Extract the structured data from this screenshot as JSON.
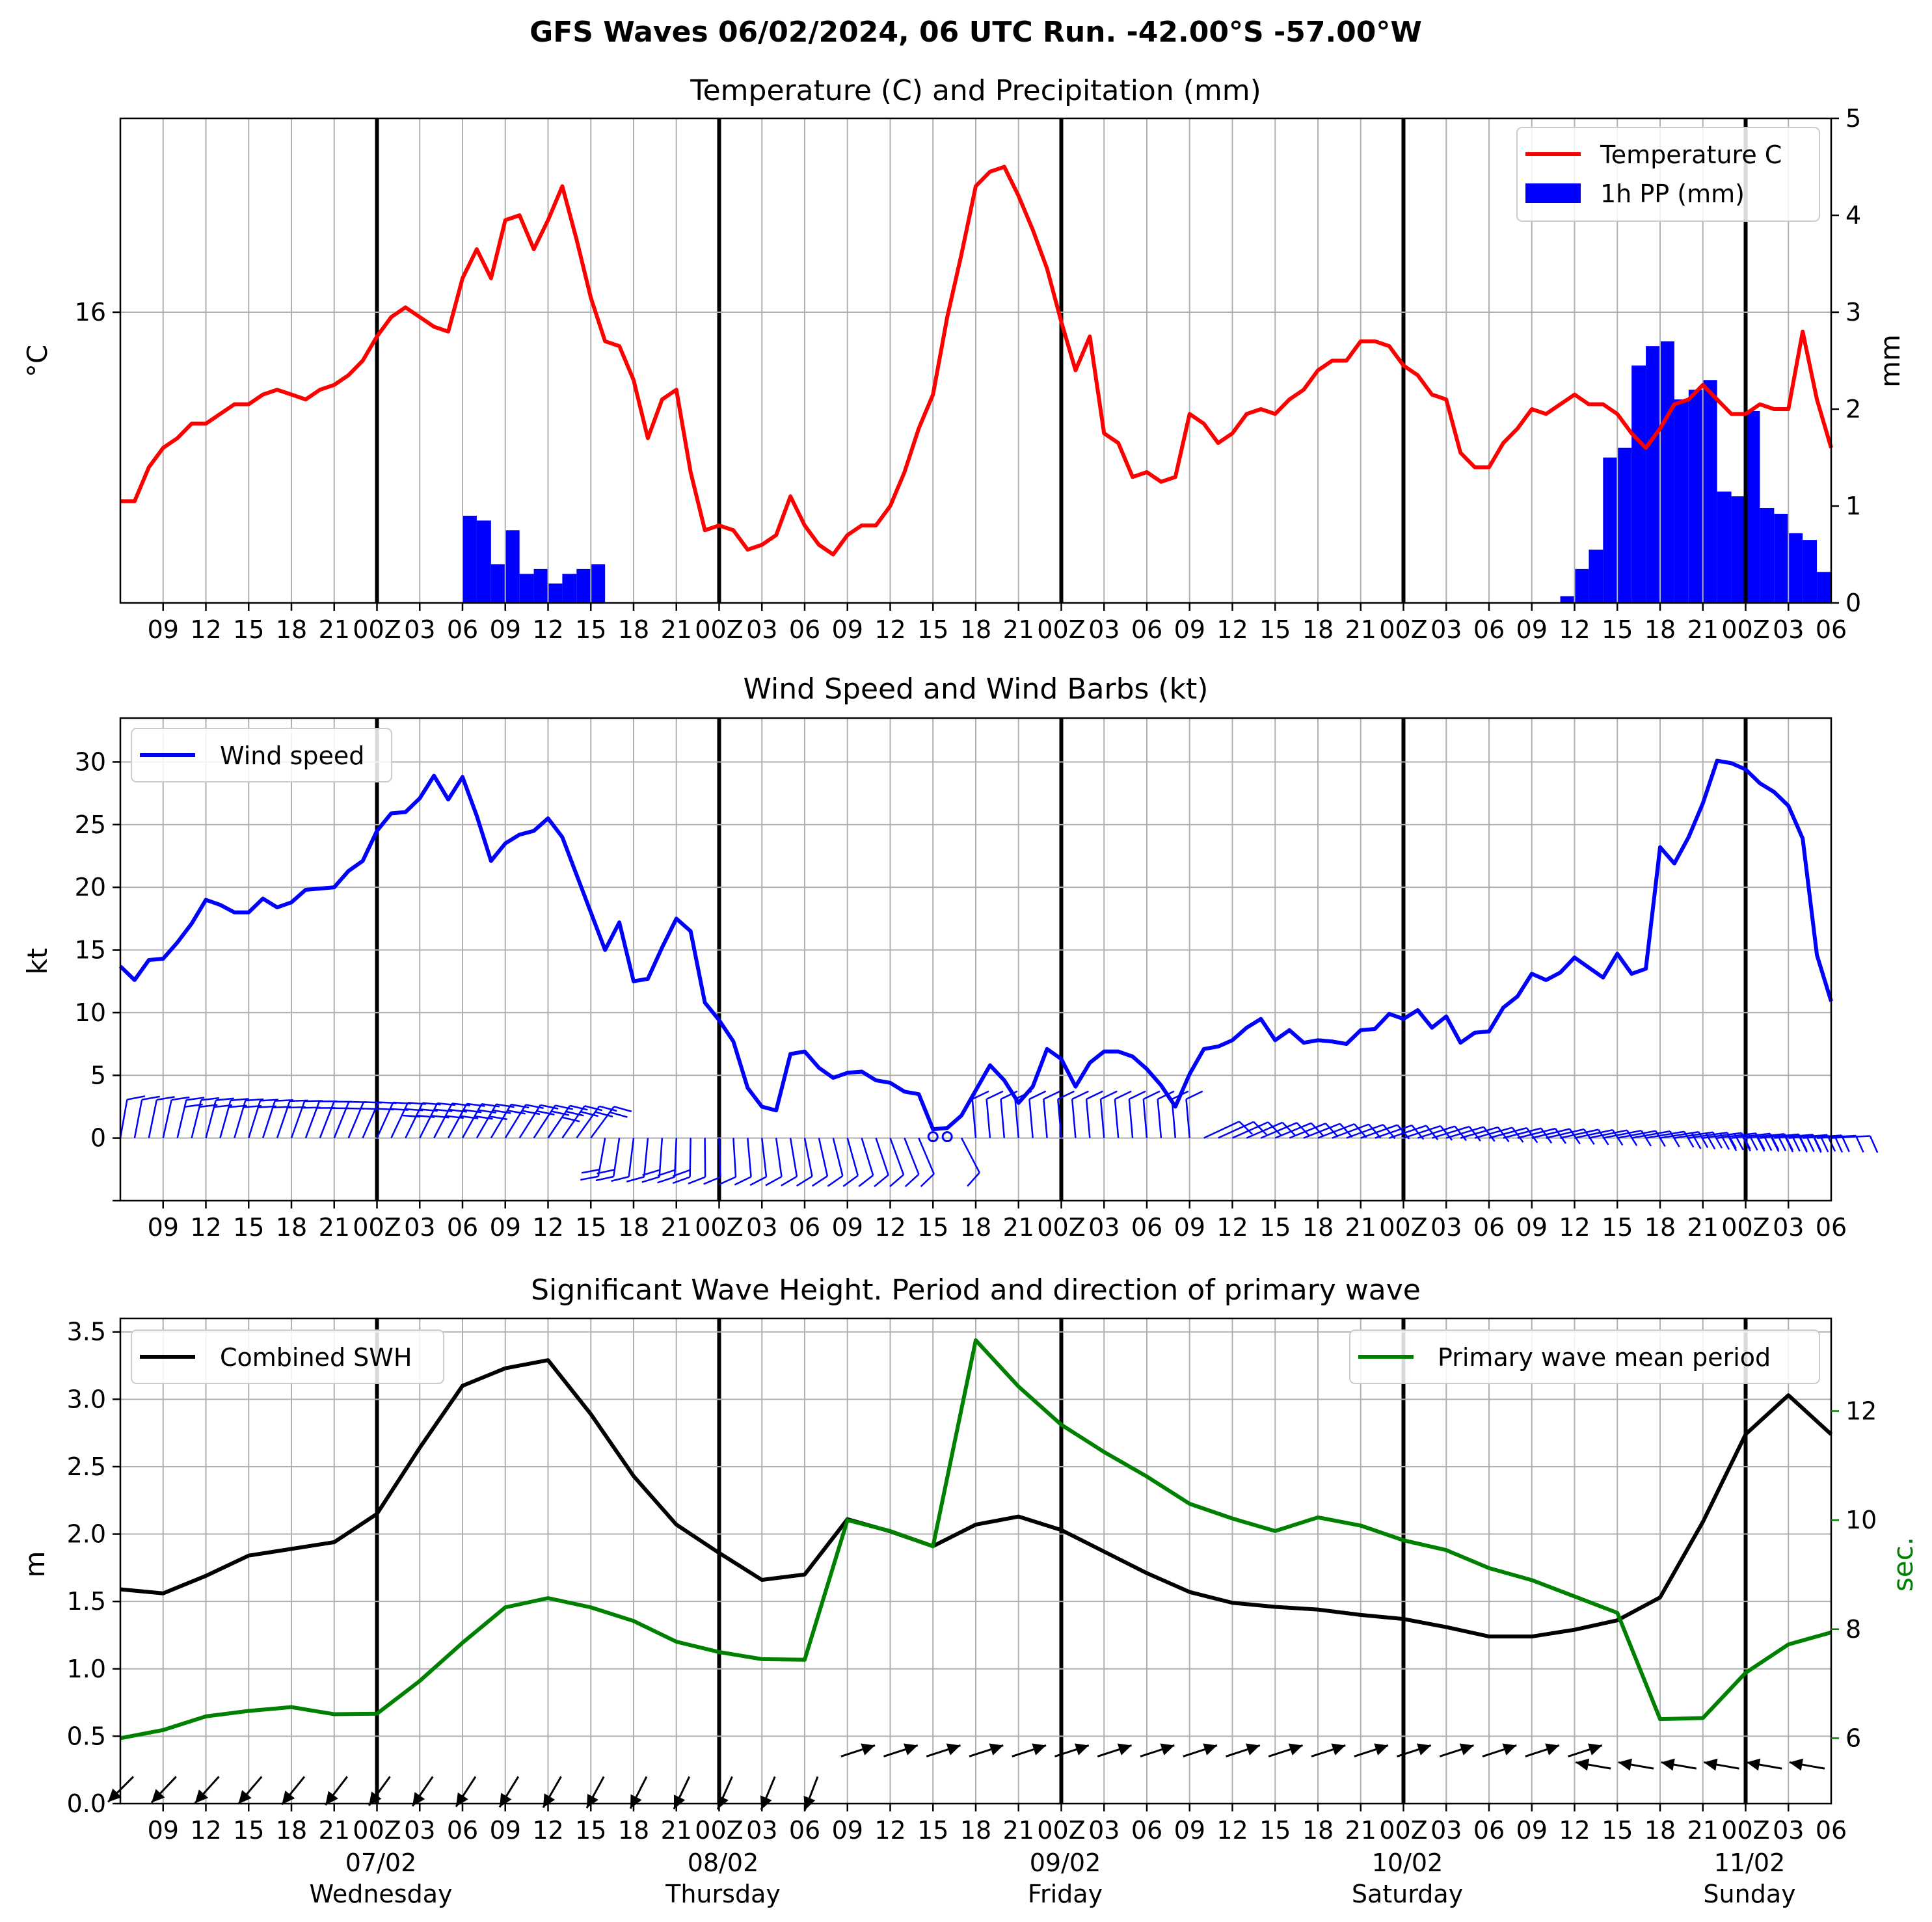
{
  "suptitle": "GFS Waves 06/02/2024, 06 UTC Run. -42.00°S -57.00°W",
  "x_tick_labels": [
    "09",
    "12",
    "15",
    "18",
    "21",
    "00Z",
    "03",
    "06",
    "09",
    "12",
    "15",
    "18",
    "21",
    "00Z",
    "03",
    "06",
    "09",
    "12",
    "15",
    "18",
    "21",
    "00Z",
    "03",
    "06",
    "09",
    "12",
    "15",
    "18",
    "21",
    "00Z",
    "03",
    "06",
    "09",
    "12",
    "15",
    "18",
    "21",
    "00Z",
    "03",
    "06"
  ],
  "day_labels": [
    {
      "date": "07/02",
      "weekday": "Wednesday"
    },
    {
      "date": "08/02",
      "weekday": "Thursday"
    },
    {
      "date": "09/02",
      "weekday": "Friday"
    },
    {
      "date": "10/02",
      "weekday": "Saturday"
    },
    {
      "date": "11/02",
      "weekday": "Sunday"
    }
  ],
  "colors": {
    "temperature": "#ff0000",
    "precip": "#0000ff",
    "wind": "#0000ff",
    "swh": "#000000",
    "period": "#008000",
    "grid": "#b0b0b0"
  },
  "chart_data": [
    {
      "type": "line",
      "title": "Temperature (C) and Precipitation (mm)",
      "x_unit": "hours since 06/02/2024 06 UTC",
      "x_range": [
        0,
        120
      ],
      "ylabel": "°C",
      "y_ticks": [
        "16"
      ],
      "ylabel_right": "mm",
      "ylim_right": [
        0,
        5
      ],
      "y_ticks_right": [
        "0",
        "1",
        "2",
        "3",
        "4",
        "5"
      ],
      "legend": {
        "placement": "top-right",
        "entries": [
          "Temperature C",
          "1h PP (mm)"
        ]
      },
      "grid": true,
      "series": [
        {
          "name": "Temperature C",
          "axis": "left_mm_scale",
          "x": [
            0,
            1,
            2,
            3,
            4,
            5,
            6,
            7,
            8,
            9,
            10,
            11,
            12,
            13,
            14,
            15,
            16,
            17,
            18,
            19,
            20,
            21,
            22,
            23,
            24,
            25,
            26,
            27,
            28,
            29,
            30,
            31,
            32,
            33,
            34,
            35,
            36,
            37,
            38,
            39,
            40,
            41,
            42,
            43,
            44,
            45,
            46,
            47,
            48,
            49,
            50,
            51,
            52,
            53,
            54,
            55,
            56,
            57,
            58,
            59,
            60,
            61,
            62,
            63,
            64,
            65,
            66,
            67,
            68,
            69,
            70,
            71,
            72,
            73,
            74,
            75,
            76,
            77,
            78,
            79,
            80,
            81,
            82,
            83,
            84,
            85,
            86,
            87,
            88,
            89,
            90,
            91,
            92,
            93,
            94,
            95,
            96,
            97,
            98,
            99,
            100,
            101,
            102,
            103,
            104,
            105,
            106,
            107,
            108,
            109,
            110,
            111,
            112,
            113,
            114,
            115,
            116,
            117,
            118,
            119,
            120
          ],
          "values": [
            1.05,
            1.05,
            1.4,
            1.6,
            1.7,
            1.85,
            1.85,
            1.95,
            2.05,
            2.05,
            2.15,
            2.2,
            2.15,
            2.1,
            2.2,
            2.25,
            2.35,
            2.5,
            2.75,
            2.95,
            3.05,
            2.95,
            2.85,
            2.8,
            3.35,
            3.65,
            3.35,
            3.95,
            4.0,
            3.65,
            3.95,
            4.3,
            3.75,
            3.15,
            2.7,
            2.65,
            2.3,
            1.7,
            2.1,
            2.2,
            1.35,
            0.75,
            0.8,
            0.75,
            0.55,
            0.6,
            0.7,
            1.1,
            0.8,
            0.6,
            0.5,
            0.7,
            0.8,
            0.8,
            1.0,
            1.35,
            1.8,
            2.15,
            2.95,
            3.6,
            4.3,
            4.45,
            4.5,
            4.2,
            3.85,
            3.45,
            2.9,
            2.4,
            2.75,
            1.75,
            1.65,
            1.3,
            1.35,
            1.25,
            1.3,
            1.95,
            1.85,
            1.65,
            1.75,
            1.95,
            2.0,
            1.95,
            2.1,
            2.2,
            2.4,
            2.5,
            2.5,
            2.7,
            2.7,
            2.65,
            2.45,
            2.35,
            2.15,
            2.1,
            1.55,
            1.4,
            1.4,
            1.65,
            1.8,
            2.0,
            1.95,
            2.05,
            2.15,
            2.05,
            2.05,
            1.95,
            1.75,
            1.6,
            1.8,
            2.05,
            2.1,
            2.25,
            2.1,
            1.95,
            1.95,
            2.05,
            2.0,
            2.0,
            2.8,
            2.1,
            1.6
          ]
        },
        {
          "name": "1h PP (mm)",
          "axis": "right",
          "kind": "bar",
          "x": [
            24,
            25,
            26,
            27,
            28,
            29,
            30,
            31,
            32,
            33,
            101,
            102,
            103,
            104,
            105,
            106,
            107,
            108,
            109,
            110,
            111,
            112,
            113,
            114,
            115,
            116,
            117,
            118,
            119
          ],
          "values": [
            0.9,
            0.85,
            0.4,
            0.75,
            0.3,
            0.35,
            0.2,
            0.3,
            0.35,
            0.4,
            0.07,
            0.35,
            0.55,
            1.5,
            1.6,
            2.45,
            2.65,
            2.7,
            2.1,
            2.2,
            2.3,
            1.15,
            1.1,
            1.98,
            0.98,
            0.92,
            0.72,
            0.65,
            0.32
          ]
        }
      ]
    },
    {
      "type": "line",
      "title": "Wind Speed and Wind Barbs (kt)",
      "x_unit": "hours since 06/02/2024 06 UTC",
      "x_range": [
        0,
        120
      ],
      "ylabel": "kt",
      "ylim": [
        -5,
        33.5
      ],
      "y_ticks": [
        "0",
        "5",
        "10",
        "15",
        "20",
        "25",
        "30"
      ],
      "legend": {
        "placement": "top-left",
        "entries": [
          "Wind speed"
        ]
      },
      "grid": true,
      "series": [
        {
          "name": "Wind speed",
          "x": [
            0,
            1,
            2,
            3,
            4,
            5,
            6,
            7,
            8,
            9,
            10,
            11,
            12,
            13,
            14,
            15,
            16,
            17,
            18,
            19,
            20,
            21,
            22,
            23,
            24,
            25,
            26,
            27,
            28,
            29,
            30,
            31,
            32,
            33,
            34,
            35,
            36,
            37,
            38,
            39,
            40,
            41,
            42,
            43,
            44,
            45,
            46,
            47,
            48,
            49,
            50,
            51,
            52,
            53,
            54,
            55,
            56,
            57,
            58,
            59,
            60,
            61,
            62,
            63,
            64,
            65,
            66,
            67,
            68,
            69,
            70,
            71,
            72,
            73,
            74,
            75,
            76,
            77,
            78,
            79,
            80,
            81,
            82,
            83,
            84,
            85,
            86,
            87,
            88,
            89,
            90,
            91,
            92,
            93,
            94,
            95,
            96,
            97,
            98,
            99,
            100,
            101,
            102,
            103,
            104,
            105,
            106,
            107,
            108,
            109,
            110,
            111,
            112,
            113,
            114,
            115,
            116,
            117,
            118,
            119,
            120
          ],
          "values": [
            13.7,
            12.6,
            14.2,
            14.3,
            15.6,
            17.1,
            19.0,
            18.6,
            18.0,
            18.0,
            19.1,
            18.4,
            18.8,
            19.8,
            19.9,
            20.0,
            21.3,
            22.1,
            24.5,
            25.9,
            26.0,
            27.1,
            28.9,
            27.0,
            28.8,
            25.7,
            22.1,
            23.5,
            24.2,
            24.5,
            25.5,
            24.0,
            21.0,
            18.0,
            15.0,
            17.2,
            12.5,
            12.7,
            15.2,
            17.5,
            16.5,
            10.8,
            9.4,
            7.7,
            4.0,
            2.5,
            2.2,
            6.7,
            6.9,
            5.6,
            4.8,
            5.2,
            5.3,
            4.6,
            4.4,
            3.7,
            3.5,
            0.7,
            0.8,
            1.8,
            3.8,
            5.8,
            4.6,
            2.8,
            4.1,
            7.1,
            6.3,
            4.1,
            6.0,
            6.9,
            6.9,
            6.5,
            5.5,
            4.2,
            2.5,
            5.1,
            7.1,
            7.3,
            7.8,
            8.8,
            9.5,
            7.8,
            8.6,
            7.6,
            7.8,
            7.7,
            7.5,
            8.6,
            8.7,
            9.9,
            9.5,
            10.2,
            8.8,
            9.7,
            7.6,
            8.4,
            8.5,
            10.4,
            11.3,
            13.1,
            12.6,
            13.2,
            14.4,
            13.6,
            12.8,
            14.7,
            13.1,
            13.5,
            23.2,
            21.9,
            24.0,
            26.7,
            30.1,
            29.9,
            29.4,
            28.3,
            27.6,
            26.5,
            23.9,
            14.6,
            10.9
          ]
        }
      ]
    },
    {
      "type": "line",
      "title": "Significant Wave Height. Period and direction of primary wave",
      "x_unit": "hours since 06/02/2024 06 UTC",
      "x_range": [
        0,
        120
      ],
      "ylabel": "m",
      "ylim": [
        0,
        3.6
      ],
      "y_ticks": [
        "0.0",
        "0.5",
        "1.0",
        "1.5",
        "2.0",
        "2.5",
        "3.0",
        "3.5"
      ],
      "ylabel_right": "sec.",
      "ylim_right": [
        4.8,
        13.7
      ],
      "y_ticks_right": [
        "6",
        "8",
        "10",
        "12"
      ],
      "legend": [
        {
          "placement": "top-left",
          "entries": [
            "Combined SWH"
          ]
        },
        {
          "placement": "top-right",
          "entries": [
            "Primary wave mean period"
          ]
        }
      ],
      "grid": true,
      "series": [
        {
          "name": "Combined SWH",
          "x": [
            0,
            3,
            6,
            9,
            12,
            15,
            18,
            21,
            24,
            27,
            30,
            33,
            36,
            39,
            42,
            45,
            48,
            51,
            54,
            57,
            60,
            63,
            66,
            69,
            72,
            75,
            78,
            81,
            84,
            87,
            90,
            93,
            96,
            99,
            102,
            105,
            108,
            111,
            114,
            117,
            120
          ],
          "values": [
            1.59,
            1.56,
            1.69,
            1.84,
            1.89,
            1.94,
            2.15,
            2.64,
            3.1,
            3.23,
            3.29,
            2.89,
            2.43,
            2.07,
            1.86,
            1.66,
            1.7,
            2.11,
            2.02,
            1.91,
            2.07,
            2.13,
            2.03,
            1.87,
            1.71,
            1.57,
            1.49,
            1.46,
            1.44,
            1.4,
            1.37,
            1.31,
            1.24,
            1.24,
            1.29,
            1.36,
            1.53,
            2.09,
            2.74,
            3.03,
            2.74
          ]
        },
        {
          "name": "Primary wave mean period",
          "x": [
            0,
            3,
            6,
            9,
            12,
            15,
            18,
            21,
            24,
            27,
            30,
            33,
            36,
            39,
            42,
            45,
            48,
            51,
            54,
            57,
            60,
            63,
            66,
            69,
            72,
            75,
            78,
            81,
            84,
            87,
            90,
            93,
            96,
            99,
            102,
            105,
            108,
            111,
            114,
            117,
            120
          ],
          "values": [
            6.0,
            6.15,
            6.4,
            6.5,
            6.57,
            6.44,
            6.45,
            7.05,
            7.75,
            8.4,
            8.57,
            8.4,
            8.15,
            7.77,
            7.58,
            7.45,
            7.44,
            10.0,
            9.8,
            9.52,
            13.3,
            12.45,
            11.75,
            11.25,
            10.8,
            10.3,
            10.03,
            9.8,
            10.05,
            9.9,
            9.63,
            9.45,
            9.12,
            8.9,
            8.6,
            8.3,
            6.35,
            6.37,
            7.2,
            7.72,
            7.94
          ]
        }
      ]
    }
  ]
}
